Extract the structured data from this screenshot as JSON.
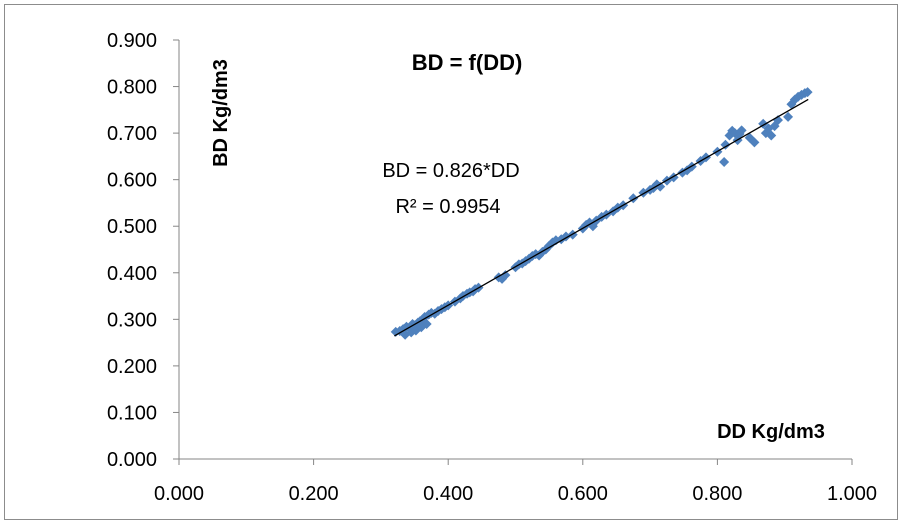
{
  "chart_data": {
    "type": "scatter",
    "title": "BD = f(DD)",
    "xlabel": "DD Kg/dm3",
    "ylabel": "BD Kg/dm3",
    "xlim": [
      0,
      1
    ],
    "ylim": [
      0,
      0.9
    ],
    "xticks": [
      "0.000",
      "0.200",
      "0.400",
      "0.600",
      "0.800",
      "1.000"
    ],
    "yticks": [
      "0.000",
      "0.100",
      "0.200",
      "0.300",
      "0.400",
      "0.500",
      "0.600",
      "0.700",
      "0.800",
      "0.900"
    ],
    "marker_color": "#4f81bd",
    "trendline": {
      "slope": 0.826,
      "intercept": 0,
      "x_range": [
        0.32,
        0.935
      ],
      "color": "#000000"
    },
    "equation": "BD = 0.826*DD",
    "r_squared": "R² = 0.9954",
    "grid": false,
    "legend": "none",
    "points": [
      [
        0.322,
        0.273
      ],
      [
        0.328,
        0.275
      ],
      [
        0.333,
        0.279
      ],
      [
        0.336,
        0.267
      ],
      [
        0.338,
        0.284
      ],
      [
        0.342,
        0.281
      ],
      [
        0.345,
        0.272
      ],
      [
        0.347,
        0.29
      ],
      [
        0.35,
        0.287
      ],
      [
        0.352,
        0.276
      ],
      [
        0.355,
        0.293
      ],
      [
        0.358,
        0.296
      ],
      [
        0.36,
        0.283
      ],
      [
        0.362,
        0.3
      ],
      [
        0.365,
        0.305
      ],
      [
        0.368,
        0.29
      ],
      [
        0.371,
        0.31
      ],
      [
        0.375,
        0.314
      ],
      [
        0.38,
        0.312
      ],
      [
        0.385,
        0.318
      ],
      [
        0.39,
        0.322
      ],
      [
        0.395,
        0.326
      ],
      [
        0.4,
        0.33
      ],
      [
        0.41,
        0.338
      ],
      [
        0.418,
        0.345
      ],
      [
        0.422,
        0.35
      ],
      [
        0.428,
        0.355
      ],
      [
        0.432,
        0.358
      ],
      [
        0.437,
        0.36
      ],
      [
        0.44,
        0.365
      ],
      [
        0.445,
        0.368
      ],
      [
        0.475,
        0.39
      ],
      [
        0.48,
        0.387
      ],
      [
        0.485,
        0.395
      ],
      [
        0.5,
        0.412
      ],
      [
        0.505,
        0.418
      ],
      [
        0.51,
        0.42
      ],
      [
        0.515,
        0.425
      ],
      [
        0.52,
        0.43
      ],
      [
        0.525,
        0.436
      ],
      [
        0.53,
        0.44
      ],
      [
        0.535,
        0.437
      ],
      [
        0.54,
        0.445
      ],
      [
        0.545,
        0.45
      ],
      [
        0.55,
        0.458
      ],
      [
        0.555,
        0.465
      ],
      [
        0.56,
        0.47
      ],
      [
        0.568,
        0.472
      ],
      [
        0.575,
        0.478
      ],
      [
        0.585,
        0.482
      ],
      [
        0.6,
        0.495
      ],
      [
        0.605,
        0.503
      ],
      [
        0.61,
        0.508
      ],
      [
        0.615,
        0.5
      ],
      [
        0.62,
        0.512
      ],
      [
        0.628,
        0.52
      ],
      [
        0.635,
        0.525
      ],
      [
        0.645,
        0.532
      ],
      [
        0.652,
        0.54
      ],
      [
        0.66,
        0.545
      ],
      [
        0.675,
        0.56
      ],
      [
        0.69,
        0.572
      ],
      [
        0.7,
        0.578
      ],
      [
        0.705,
        0.582
      ],
      [
        0.71,
        0.59
      ],
      [
        0.715,
        0.585
      ],
      [
        0.725,
        0.598
      ],
      [
        0.735,
        0.605
      ],
      [
        0.748,
        0.615
      ],
      [
        0.755,
        0.62
      ],
      [
        0.762,
        0.628
      ],
      [
        0.775,
        0.64
      ],
      [
        0.783,
        0.648
      ],
      [
        0.8,
        0.66
      ],
      [
        0.81,
        0.638
      ],
      [
        0.812,
        0.675
      ],
      [
        0.818,
        0.695
      ],
      [
        0.822,
        0.705
      ],
      [
        0.826,
        0.7
      ],
      [
        0.83,
        0.685
      ],
      [
        0.833,
        0.698
      ],
      [
        0.836,
        0.706
      ],
      [
        0.848,
        0.69
      ],
      [
        0.855,
        0.68
      ],
      [
        0.868,
        0.72
      ],
      [
        0.872,
        0.7
      ],
      [
        0.876,
        0.71
      ],
      [
        0.88,
        0.695
      ],
      [
        0.885,
        0.715
      ],
      [
        0.89,
        0.728
      ],
      [
        0.905,
        0.735
      ],
      [
        0.91,
        0.762
      ],
      [
        0.915,
        0.772
      ],
      [
        0.92,
        0.778
      ],
      [
        0.925,
        0.782
      ],
      [
        0.93,
        0.786
      ],
      [
        0.934,
        0.788
      ]
    ]
  }
}
